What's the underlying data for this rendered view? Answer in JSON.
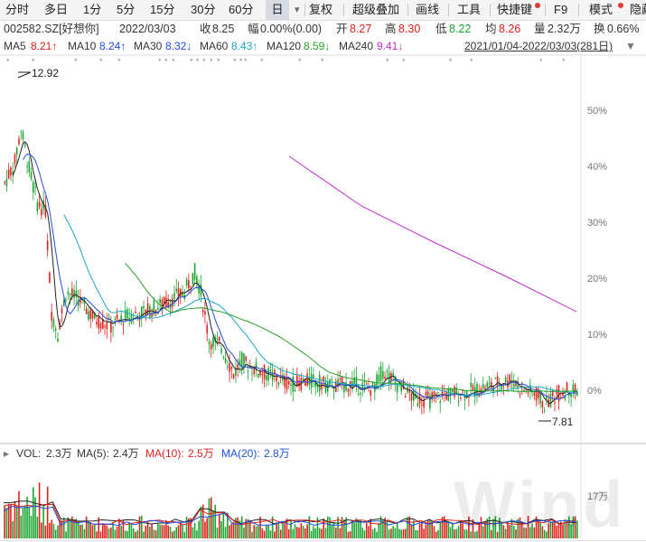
{
  "toolbar": {
    "timeshare": "分时",
    "multiday": "多日",
    "min1": "1分",
    "min5": "5分",
    "min15": "15分",
    "date": "2022/03/03",
    "min30": "30分",
    "min60": "60分",
    "day": "日",
    "restore_rights": "复权",
    "super_overlay": "超级叠加",
    "draw_line": "画线",
    "tools": "工具",
    "shortcuts": "快捷键",
    "f9": "F9",
    "template": "模式",
    "hide": "隐藏"
  },
  "quote": {
    "code": "002582.SZ[好想你]",
    "close_label": "收",
    "close": "8.25",
    "change_label": "幅",
    "change": "0.00%(0.00)",
    "open_label": "开",
    "open": "8.27",
    "high_label": "高",
    "high": "8.30",
    "low_label": "低",
    "low": "8.22",
    "avg_label": "均",
    "avg": "8.26",
    "volume_label": "量",
    "volume": "2.32万",
    "turnover_label": "换",
    "turnover": "0.66%"
  },
  "ma": {
    "ma5_label": "MA5",
    "ma5": "8.21↑",
    "ma10_label": "MA10",
    "ma10": "8.24↑",
    "ma30_label": "MA30",
    "ma30": "8.32↓",
    "ma60_label": "MA60",
    "ma60": "8.43↑",
    "ma120_label": "MA120",
    "ma120": "8.59↓",
    "ma240_label": "MA240",
    "ma240": "9.41↓",
    "range": "2021/01/04-2022/03/03(281日)"
  },
  "price_axis": [
    "50%",
    "40%",
    "30%",
    "20%",
    "10%",
    "0%"
  ],
  "annotations": {
    "high_value": "12.92",
    "low_value": "7.81"
  },
  "volume": {
    "vol_label": "VOL:",
    "vol": "2.3万",
    "ma5_label": "MA(5):",
    "ma5": "2.4万",
    "ma10_label": "MA(10):",
    "ma10": "2.5万",
    "ma20_label": "MA(20):",
    "ma20": "2.8万",
    "axis_label": "17万"
  },
  "watermark": "Wind",
  "colors": {
    "up": "#e0201b",
    "down": "#1aa531",
    "ma5": "#222222",
    "ma10": "#1d4fe0",
    "ma30": "#1aa8c9",
    "ma60": "#2aa12a",
    "ma240": "#c02ccf"
  },
  "icons": [
    "dropdown-arrow-icon",
    "event-star-icon",
    "info-dot-icon"
  ]
}
